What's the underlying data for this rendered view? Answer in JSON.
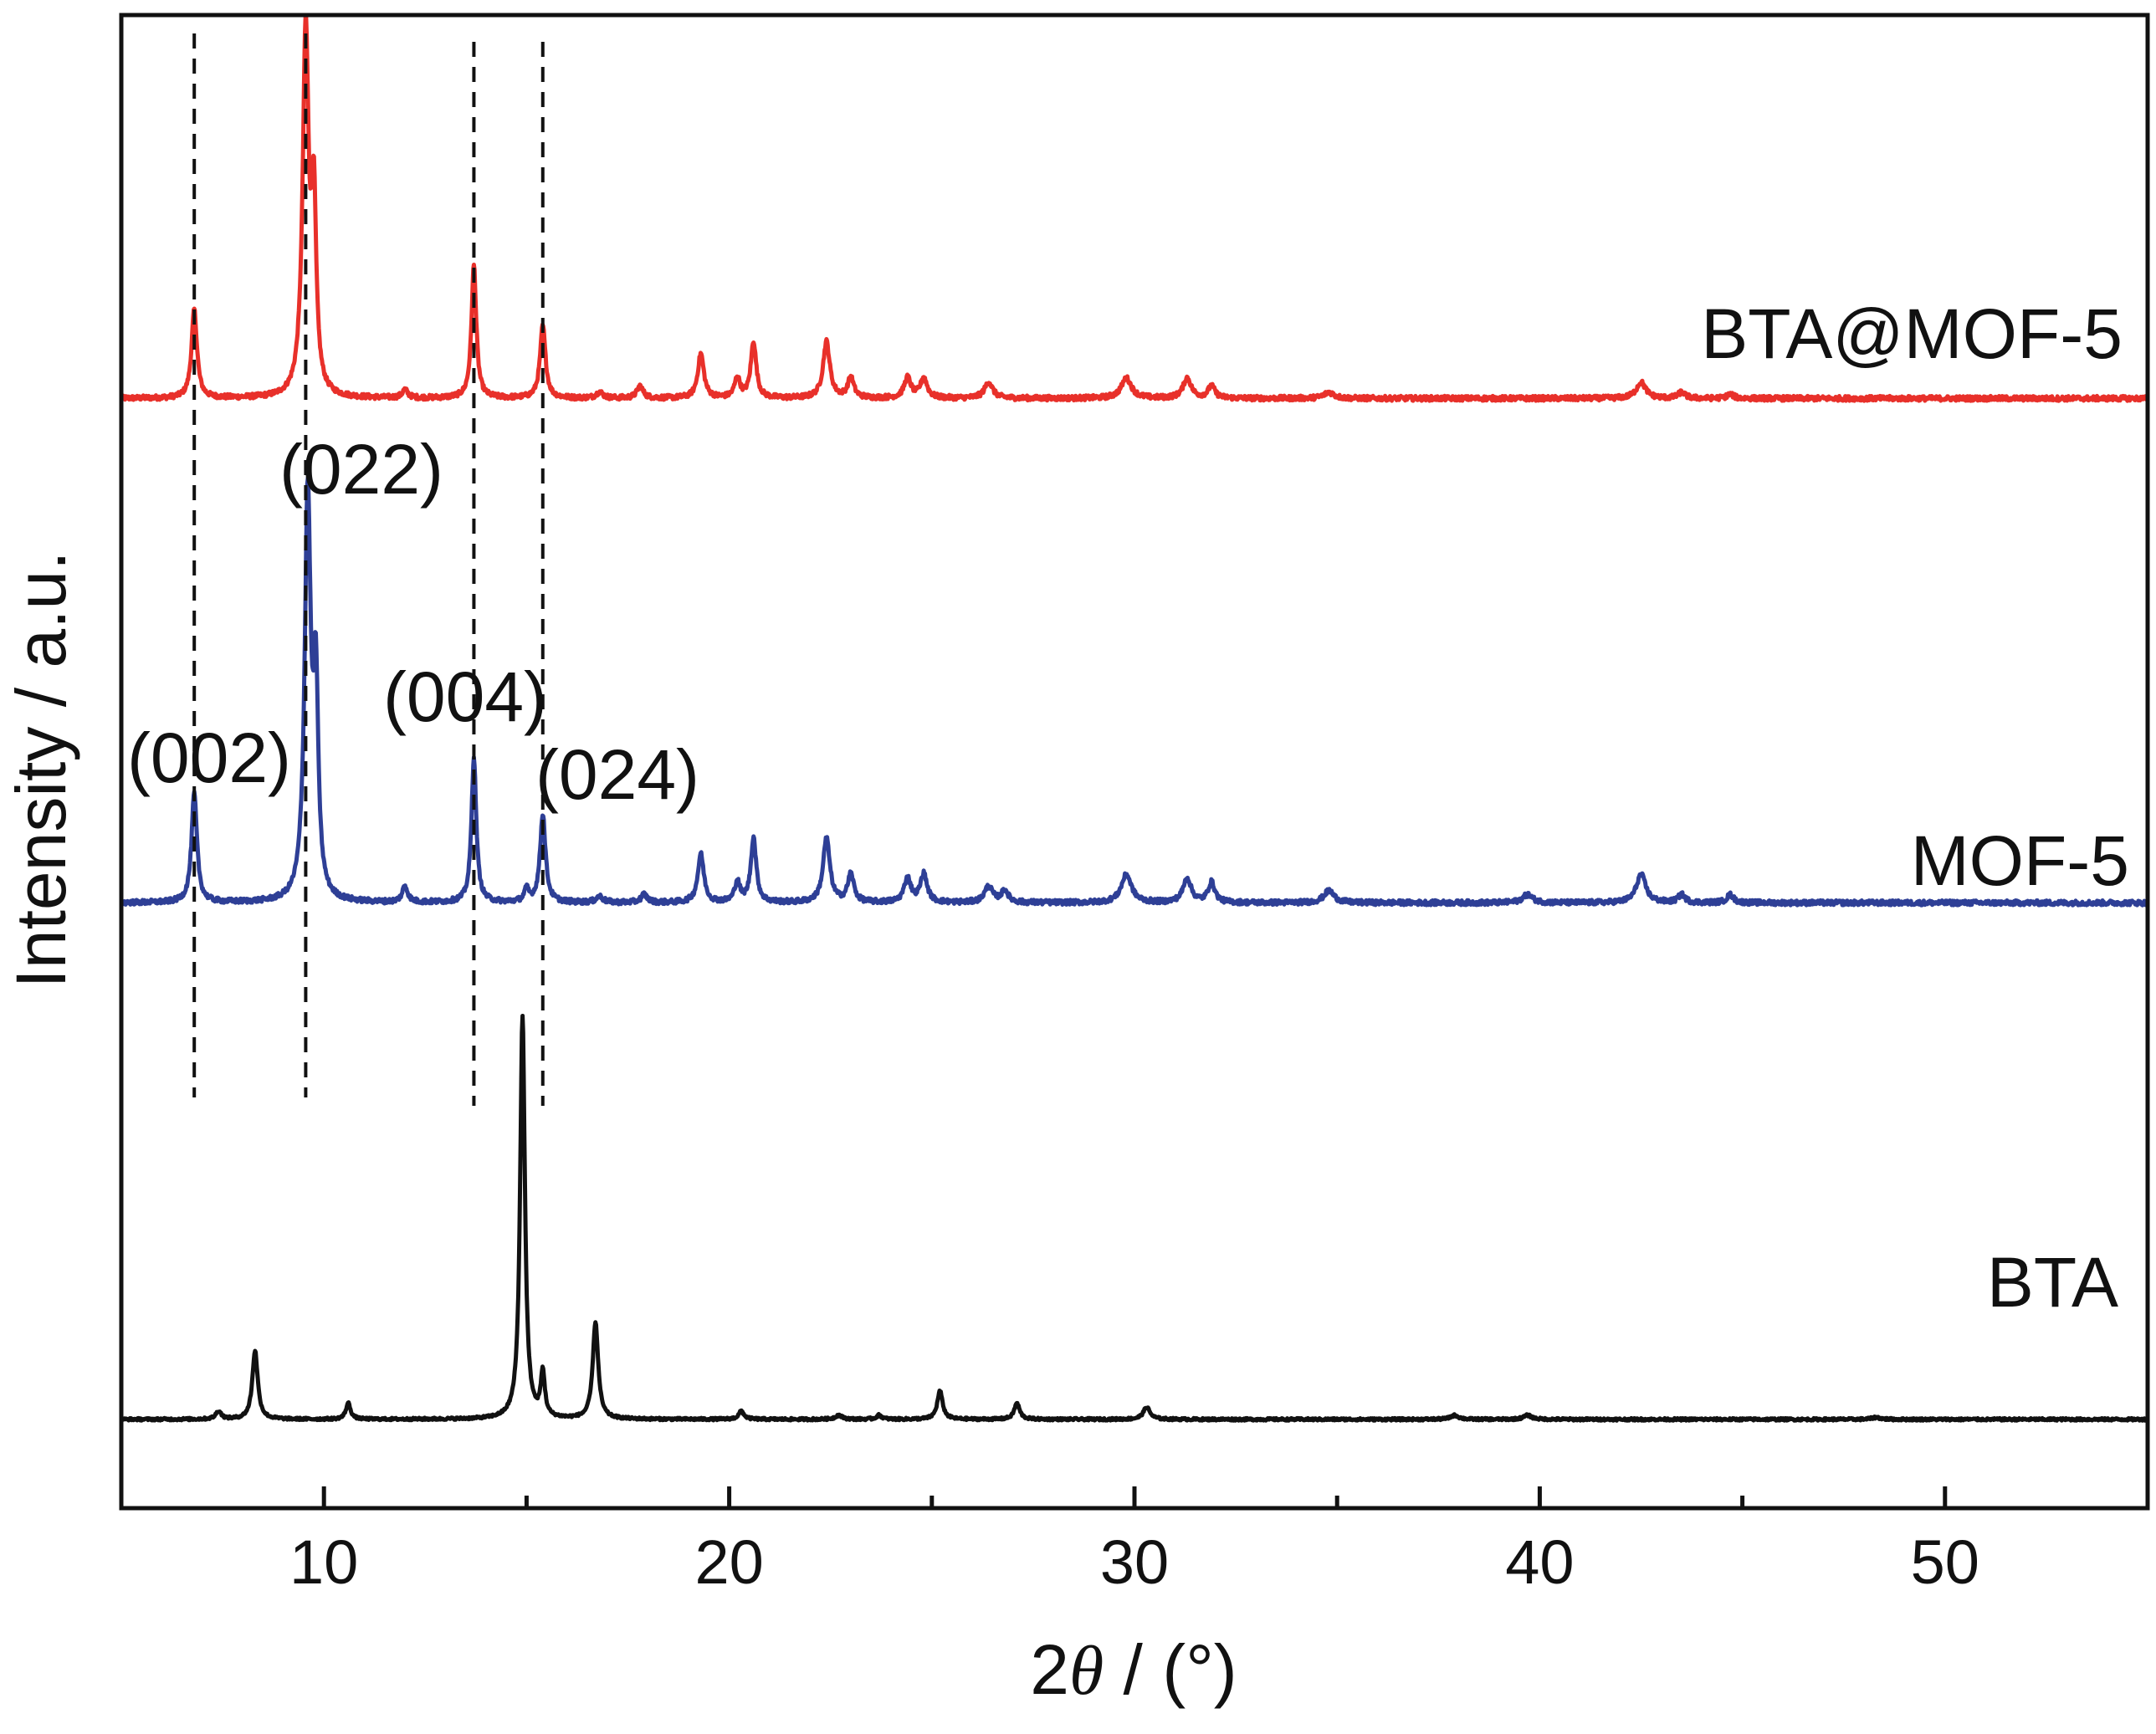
{
  "chart_data": {
    "type": "line",
    "title": "",
    "xlabel_prefix": "2",
    "xlabel_symbol": "θ",
    "xlabel_suffix": " / (°)",
    "ylabel": "Intensity / a.u.",
    "xlim": [
      5,
      55
    ],
    "xticks": [
      10,
      20,
      30,
      40,
      50
    ],
    "grid": false,
    "legend": "none",
    "series": [
      {
        "name": "BTA@MOF-5",
        "color": "#e8302a",
        "offset": 2.75,
        "baseline_noise": 0.006,
        "peaks": [
          [
            6.8,
            0.22,
            0.08
          ],
          [
            9.55,
            0.9,
            0.09
          ],
          [
            9.75,
            0.45,
            0.07
          ],
          [
            12.0,
            0.02,
            0.08
          ],
          [
            13.7,
            0.33,
            0.07
          ],
          [
            15.4,
            0.18,
            0.08
          ],
          [
            16.8,
            0.015,
            0.1
          ],
          [
            17.8,
            0.03,
            0.09
          ],
          [
            19.3,
            0.11,
            0.09
          ],
          [
            20.2,
            0.05,
            0.08
          ],
          [
            20.6,
            0.14,
            0.08
          ],
          [
            22.4,
            0.14,
            0.1
          ],
          [
            23.0,
            0.05,
            0.09
          ],
          [
            24.4,
            0.05,
            0.1
          ],
          [
            24.8,
            0.05,
            0.1
          ],
          [
            26.4,
            0.04,
            0.12
          ],
          [
            29.8,
            0.05,
            0.15
          ],
          [
            31.3,
            0.05,
            0.12
          ],
          [
            31.9,
            0.03,
            0.1
          ],
          [
            34.8,
            0.015,
            0.15
          ],
          [
            42.5,
            0.04,
            0.14
          ],
          [
            43.5,
            0.015,
            0.1
          ],
          [
            44.7,
            0.01,
            0.1
          ]
        ]
      },
      {
        "name": "MOF-5",
        "color": "#2e3f96",
        "offset": 1.5,
        "baseline_noise": 0.006,
        "peaks": [
          [
            6.8,
            0.27,
            0.08
          ],
          [
            9.6,
            1.0,
            0.09
          ],
          [
            9.8,
            0.5,
            0.07
          ],
          [
            12.0,
            0.04,
            0.08
          ],
          [
            13.7,
            0.36,
            0.07
          ],
          [
            15.0,
            0.03,
            0.07
          ],
          [
            15.4,
            0.22,
            0.08
          ],
          [
            16.8,
            0.015,
            0.1
          ],
          [
            17.9,
            0.02,
            0.09
          ],
          [
            19.3,
            0.12,
            0.09
          ],
          [
            20.2,
            0.05,
            0.08
          ],
          [
            20.6,
            0.16,
            0.08
          ],
          [
            22.4,
            0.16,
            0.1
          ],
          [
            23.0,
            0.07,
            0.09
          ],
          [
            24.4,
            0.06,
            0.1
          ],
          [
            24.8,
            0.07,
            0.1
          ],
          [
            26.4,
            0.04,
            0.12
          ],
          [
            26.8,
            0.03,
            0.1
          ],
          [
            29.8,
            0.07,
            0.15
          ],
          [
            31.3,
            0.06,
            0.12
          ],
          [
            31.9,
            0.05,
            0.1
          ],
          [
            34.8,
            0.03,
            0.15
          ],
          [
            39.7,
            0.02,
            0.15
          ],
          [
            42.5,
            0.07,
            0.14
          ],
          [
            43.5,
            0.02,
            0.1
          ],
          [
            44.7,
            0.02,
            0.1
          ]
        ]
      },
      {
        "name": "BTA",
        "color": "#111111",
        "offset": 0.22,
        "baseline_noise": 0.003,
        "peaks": [
          [
            7.4,
            0.02,
            0.08
          ],
          [
            8.3,
            0.17,
            0.08
          ],
          [
            10.6,
            0.04,
            0.07
          ],
          [
            14.9,
            1.0,
            0.07
          ],
          [
            15.4,
            0.11,
            0.06
          ],
          [
            16.7,
            0.24,
            0.08
          ],
          [
            20.3,
            0.02,
            0.08
          ],
          [
            22.7,
            0.01,
            0.1
          ],
          [
            23.7,
            0.01,
            0.08
          ],
          [
            25.2,
            0.07,
            0.08
          ],
          [
            27.1,
            0.04,
            0.08
          ],
          [
            30.3,
            0.03,
            0.1
          ],
          [
            37.9,
            0.01,
            0.12
          ],
          [
            39.7,
            0.01,
            0.12
          ],
          [
            48.3,
            0.005,
            0.12
          ]
        ]
      }
    ],
    "reference_lines": [
      6.8,
      9.55,
      13.7,
      15.4
    ],
    "annotations": [
      {
        "text": "(002)",
        "x": 6.8
      },
      {
        "text": "(022)",
        "x": 9.6
      },
      {
        "text": "(004)",
        "x": 13.7
      },
      {
        "text": "(024)",
        "x": 15.4
      }
    ]
  }
}
